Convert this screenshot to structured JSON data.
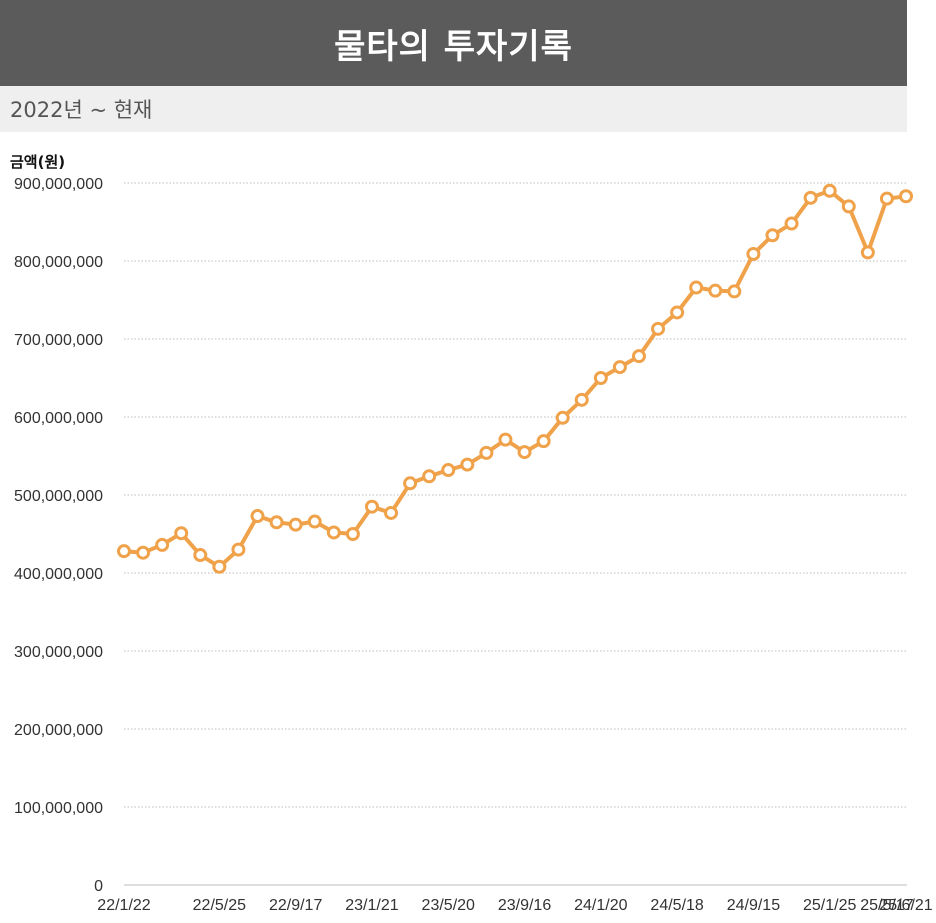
{
  "header": {
    "title": "물타의 투자기록",
    "subtitle": "2022년 ~ 현재"
  },
  "colors": {
    "title_bg": "#5b5b5b",
    "subtitle_bg": "#efefef",
    "line": "#f0a24a",
    "marker_fill": "#ffffff",
    "grid": "#bdbdbd"
  },
  "chart_data": {
    "type": "line",
    "ylabel": "금액(원)",
    "xlabel": "",
    "ylim": [
      0,
      900000000
    ],
    "yticks": [
      0,
      100000000,
      200000000,
      300000000,
      400000000,
      500000000,
      600000000,
      700000000,
      800000000,
      900000000
    ],
    "ytick_labels": [
      "0",
      "100,000,000",
      "200,000,000",
      "300,000,000",
      "400,000,000",
      "500,000,000",
      "600,000,000",
      "700,000,000",
      "800,000,000",
      "900,000,000"
    ],
    "xtick_labels": [
      "22/1/22",
      "22/5/25",
      "22/9/17",
      "23/1/21",
      "23/5/20",
      "23/9/16",
      "24/1/20",
      "24/5/18",
      "24/9/15",
      "25/1/25",
      "25/5/17",
      "25/6/21"
    ],
    "xtick_indices": [
      0,
      5,
      9,
      13,
      17,
      21,
      25,
      29,
      33,
      37,
      40,
      41
    ],
    "grid": "horizontal dotted",
    "series": [
      {
        "values": [
          428000000,
          426000000,
          436000000,
          451000000,
          423000000,
          408000000,
          430000000,
          473000000,
          465000000,
          462000000,
          466000000,
          452000000,
          450000000,
          485000000,
          477000000,
          515000000,
          524000000,
          532000000,
          539000000,
          554000000,
          571000000,
          555000000,
          569000000,
          599000000,
          622000000,
          650000000,
          664000000,
          678000000,
          713000000,
          734000000,
          766000000,
          762000000,
          761000000,
          809000000,
          833000000,
          848000000,
          881000000,
          890000000,
          870000000,
          811000000,
          880000000,
          883000000
        ]
      }
    ]
  }
}
